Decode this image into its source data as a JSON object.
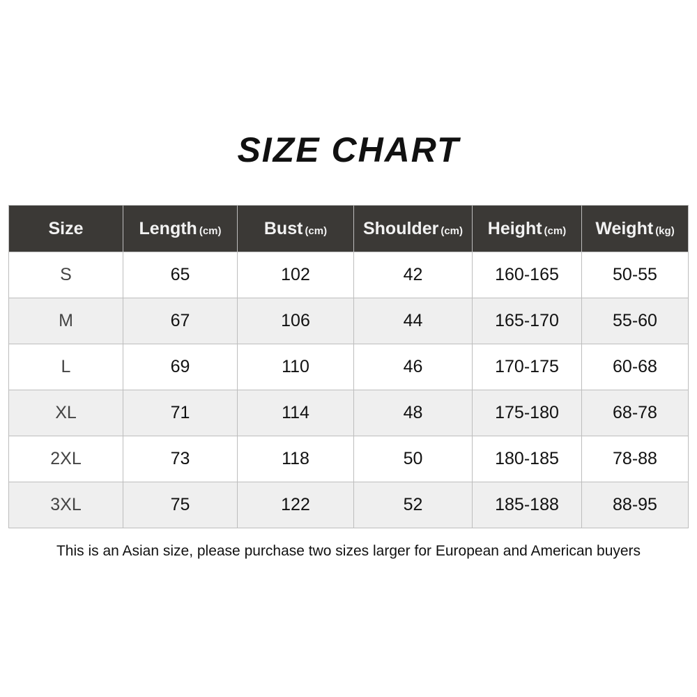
{
  "title": "SIZE CHART",
  "colors": {
    "header_bg": "#3b3936",
    "header_text": "#f2f2f2",
    "alt_row": "#efefef",
    "border": "#bdbdbd"
  },
  "table": {
    "columns": [
      {
        "label": "Size",
        "unit": ""
      },
      {
        "label": "Length",
        "unit": "(cm)"
      },
      {
        "label": "Bust",
        "unit": "(cm)"
      },
      {
        "label": "Shoulder",
        "unit": "(cm)"
      },
      {
        "label": "Height",
        "unit": "(cm)"
      },
      {
        "label": "Weight",
        "unit": "(kg)"
      }
    ],
    "rows": [
      [
        "S",
        "65",
        "102",
        "42",
        "160-165",
        "50-55"
      ],
      [
        "M",
        "67",
        "106",
        "44",
        "165-170",
        "55-60"
      ],
      [
        "L",
        "69",
        "110",
        "46",
        "170-175",
        "60-68"
      ],
      [
        "XL",
        "71",
        "114",
        "48",
        "175-180",
        "68-78"
      ],
      [
        "2XL",
        "73",
        "118",
        "50",
        "180-185",
        "78-88"
      ],
      [
        "3XL",
        "75",
        "122",
        "52",
        "185-188",
        "88-95"
      ]
    ]
  },
  "note": "This is an Asian size, please purchase two sizes larger for European and American buyers"
}
